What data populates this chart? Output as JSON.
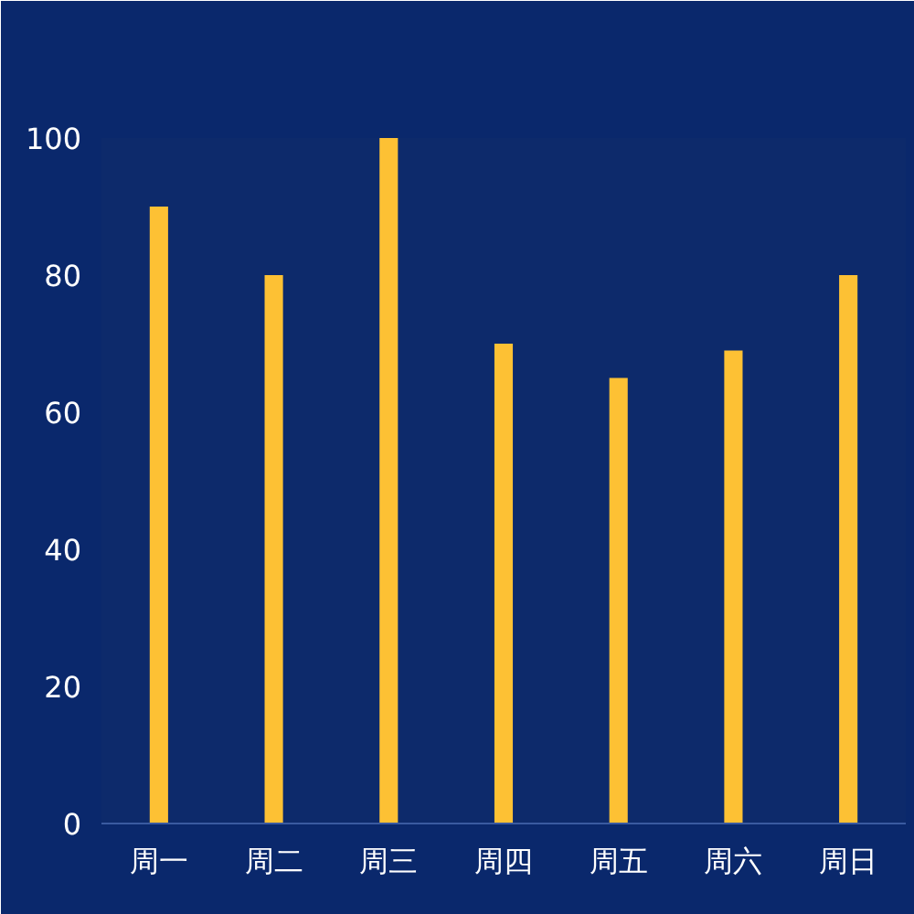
{
  "chart_data": {
    "type": "bar",
    "categories": [
      "周一",
      "周二",
      "周三",
      "周四",
      "周五",
      "周六",
      "周日"
    ],
    "values": [
      90,
      80,
      100,
      70,
      65,
      69,
      80
    ],
    "color": "#fdc134",
    "ylim": [
      0,
      100
    ],
    "yticks": [
      0,
      20,
      40,
      60,
      80,
      100
    ],
    "grid": false
  }
}
